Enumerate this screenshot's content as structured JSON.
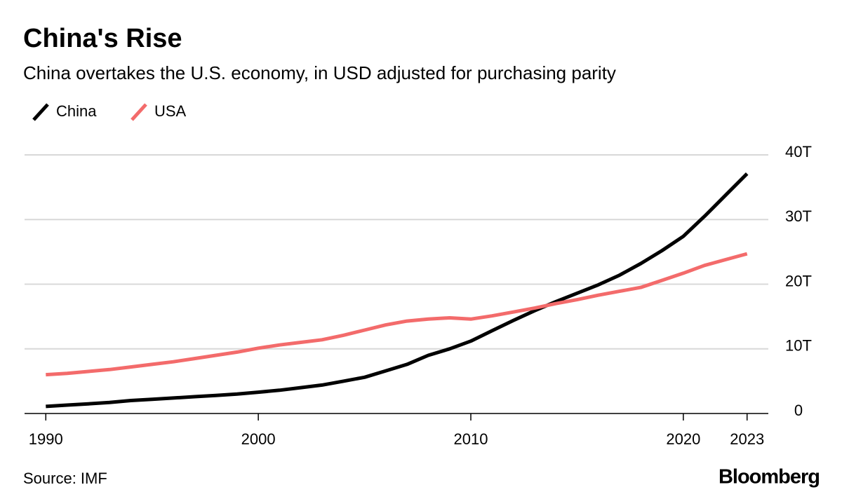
{
  "chart_data": {
    "type": "line",
    "title": "China's Rise",
    "subtitle": "China overtakes the U.S. economy, in USD adjusted for purchasing parity",
    "x": [
      1990,
      1991,
      1992,
      1993,
      1994,
      1995,
      1996,
      1997,
      1998,
      1999,
      2000,
      2001,
      2002,
      2003,
      2004,
      2005,
      2006,
      2007,
      2008,
      2009,
      2010,
      2011,
      2012,
      2013,
      2014,
      2015,
      2016,
      2017,
      2018,
      2019,
      2020,
      2021,
      2022,
      2023
    ],
    "series": [
      {
        "name": "China",
        "color": "#000000",
        "values": [
          1.1,
          1.3,
          1.5,
          1.7,
          2.0,
          2.2,
          2.4,
          2.6,
          2.8,
          3.0,
          3.3,
          3.6,
          4.0,
          4.4,
          5.0,
          5.6,
          6.6,
          7.6,
          9.0,
          10.0,
          11.2,
          12.8,
          14.4,
          15.9,
          17.3,
          18.6,
          19.9,
          21.4,
          23.2,
          25.2,
          27.4,
          30.5,
          33.8,
          37.1
        ]
      },
      {
        "name": "USA",
        "color": "#f36b6b",
        "values": [
          6.0,
          6.2,
          6.5,
          6.8,
          7.2,
          7.6,
          8.0,
          8.5,
          9.0,
          9.5,
          10.1,
          10.6,
          11.0,
          11.4,
          12.1,
          12.9,
          13.7,
          14.3,
          14.6,
          14.8,
          14.6,
          15.1,
          15.7,
          16.3,
          17.0,
          17.6,
          18.3,
          18.9,
          19.5,
          20.6,
          21.7,
          22.9,
          23.8,
          24.7
        ]
      }
    ],
    "xlim": [
      1989,
      2024
    ],
    "xticks": [
      1990,
      2000,
      2010,
      2020,
      2023
    ],
    "ylim": [
      0,
      40
    ],
    "yticks": [
      0,
      {
        "value": 10,
        "label": "10T"
      },
      {
        "value": 20,
        "label": "20T"
      },
      {
        "value": 30,
        "label": "30T"
      },
      {
        "value": 40,
        "label": "40T"
      }
    ],
    "grid": true,
    "source": "Source: IMF",
    "logo": "Bloomberg"
  }
}
